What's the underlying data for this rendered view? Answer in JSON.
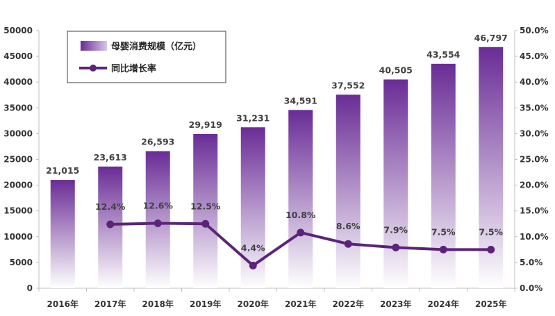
{
  "chart_data": {
    "type": "bar+line",
    "categories": [
      "2016年",
      "2017年",
      "2018年",
      "2019年",
      "2020年",
      "2021年",
      "2022年",
      "2023年",
      "2024年",
      "2025年"
    ],
    "series": [
      {
        "name": "母婴消费规模（亿元）",
        "type": "bar",
        "axis": "left",
        "values": [
          21015,
          23613,
          26593,
          29919,
          31231,
          34591,
          37552,
          40505,
          43554,
          46797
        ],
        "labels": [
          "21,015",
          "23,613",
          "26,593",
          "29,919",
          "31,231",
          "34,591",
          "37,552",
          "40,505",
          "43,554",
          "46,797"
        ]
      },
      {
        "name": "同比增长率",
        "type": "line",
        "axis": "right",
        "values": [
          null,
          12.4,
          12.6,
          12.5,
          4.4,
          10.8,
          8.6,
          7.9,
          7.5,
          7.5
        ],
        "labels": [
          "",
          "12.4%",
          "12.6%",
          "12.5%",
          "4.4%",
          "10.8%",
          "8.6%",
          "7.9%",
          "7.5%",
          "7.5%"
        ]
      }
    ],
    "y_left": {
      "min": 0,
      "max": 50000,
      "ticks": [
        0,
        5000,
        10000,
        15000,
        20000,
        25000,
        30000,
        35000,
        40000,
        45000,
        50000
      ],
      "tick_labels": [
        "0",
        "5000",
        "10000",
        "15000",
        "20000",
        "25000",
        "30000",
        "35000",
        "40000",
        "45000",
        "50000"
      ]
    },
    "y_right": {
      "min": 0,
      "max": 50,
      "ticks": [
        0,
        5,
        10,
        15,
        20,
        25,
        30,
        35,
        40,
        45,
        50
      ],
      "tick_labels": [
        "0.0%",
        "5.0%",
        "10.0%",
        "15.0%",
        "20.0%",
        "25.0%",
        "30.0%",
        "35.0%",
        "40.0%",
        "45.0%",
        "50.0%"
      ]
    },
    "legend_position": "top-left",
    "grid": false,
    "colors": {
      "bar_top": "#6a2c96",
      "bar_bottom": "#ffffff",
      "line": "#5b2479",
      "axis": "#bfbfbf"
    }
  }
}
